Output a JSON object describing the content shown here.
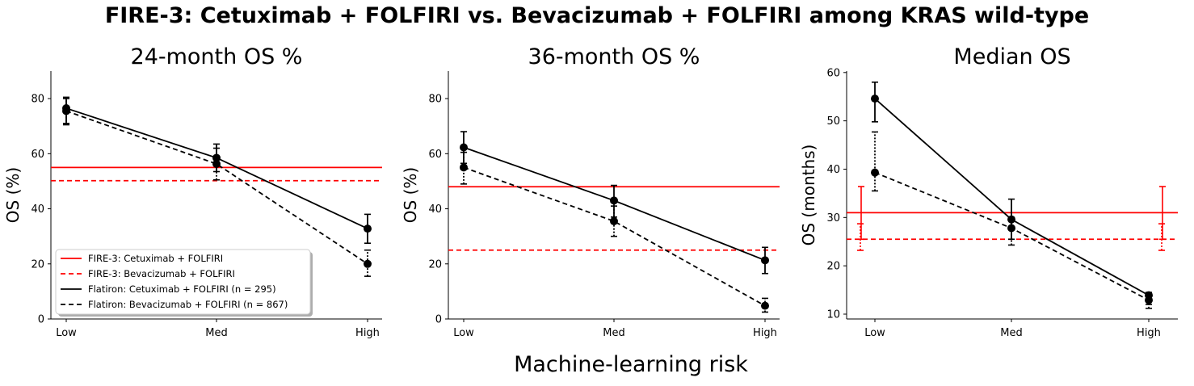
{
  "suptitle": "FIRE-3: Cetuximab + FOLFIRI vs. Bevacizumab + FOLFIRI among KRAS wild-type",
  "shared_xlabel": "Machine-learning risk",
  "colors": {
    "fire3": "#ff0000",
    "flatiron": "#000000"
  },
  "chart_data": [
    {
      "type": "line",
      "title": "24-month OS %",
      "ylabel": "OS (%)",
      "categories": [
        "Low",
        "Med",
        "High"
      ],
      "ylim": [
        0,
        90
      ],
      "yticks": [
        0,
        20,
        40,
        60,
        80
      ],
      "legend": "lower-left",
      "series": [
        {
          "name": "Flatiron: Cetuximab + FOLFIRI (n = 295)",
          "style": "solid",
          "values": [
            76.5,
            58.5,
            32.8
          ],
          "err_low": [
            71.0,
            53.5,
            27.5
          ],
          "err_high": [
            80.5,
            63.5,
            38.0
          ]
        },
        {
          "name": "Flatiron: Bevacizumab + FOLFIRI (n = 867)",
          "style": "dashed",
          "values": [
            75.5,
            56.3,
            20.0
          ],
          "err_low": [
            70.5,
            50.5,
            15.5
          ],
          "err_high": [
            80.0,
            62.0,
            25.0
          ]
        }
      ],
      "reference_lines": [
        {
          "name": "FIRE-3: Cetuximab + FOLFIRI",
          "style": "solid",
          "value": 55.0
        },
        {
          "name": "FIRE-3: Bevacizumab + FOLFIRI",
          "style": "dashed",
          "value": 50.2
        }
      ]
    },
    {
      "type": "line",
      "title": "36-month OS %",
      "ylabel": "OS (%)",
      "categories": [
        "Low",
        "Med",
        "High"
      ],
      "ylim": [
        0,
        90
      ],
      "yticks": [
        0,
        20,
        40,
        60,
        80
      ],
      "series": [
        {
          "name": "Flatiron: Cetuximab + FOLFIRI (n = 295)",
          "style": "solid",
          "values": [
            62.3,
            43.0,
            21.3
          ],
          "err_low": [
            56.5,
            37.0,
            16.5
          ],
          "err_high": [
            68.0,
            48.5,
            26.0
          ]
        },
        {
          "name": "Flatiron: Bevacizumab + FOLFIRI (n = 867)",
          "style": "dashed",
          "values": [
            55.0,
            35.5,
            4.8
          ],
          "err_low": [
            49.0,
            30.0,
            2.5
          ],
          "err_high": [
            60.5,
            41.0,
            7.5
          ]
        }
      ],
      "reference_lines": [
        {
          "name": "FIRE-3: Cetuximab + FOLFIRI",
          "style": "solid",
          "value": 48.0
        },
        {
          "name": "FIRE-3: Bevacizumab + FOLFIRI",
          "style": "dashed",
          "value": 25.0
        }
      ]
    },
    {
      "type": "line",
      "title": "Median OS",
      "ylabel": "OS (months)",
      "categories": [
        "Low",
        "Med",
        "High"
      ],
      "ylim": [
        9,
        60.3
      ],
      "yticks": [
        10,
        20,
        30,
        40,
        50,
        60
      ],
      "series": [
        {
          "name": "Flatiron: Cetuximab + FOLFIRI (n = 295)",
          "style": "solid",
          "values": [
            54.6,
            29.6,
            13.9
          ],
          "err_low": [
            49.8,
            25.5,
            12.0
          ],
          "err_high": [
            58.0,
            33.8,
            14.5
          ]
        },
        {
          "name": "Flatiron: Bevacizumab + FOLFIRI (n = 867)",
          "style": "dashed",
          "values": [
            39.3,
            27.8,
            12.9
          ],
          "err_low": [
            35.5,
            24.3,
            11.2
          ],
          "err_high": [
            47.7,
            30.0,
            14.0
          ]
        }
      ],
      "reference_lines": [
        {
          "name": "FIRE-3: Cetuximab + FOLFIRI",
          "style": "solid",
          "value": 31.0,
          "err_low": 25.5,
          "err_high": 36.4
        },
        {
          "name": "FIRE-3: Bevacizumab + FOLFIRI",
          "style": "dashed",
          "value": 25.5,
          "err_low": 23.2,
          "err_high": 28.7
        }
      ]
    }
  ]
}
